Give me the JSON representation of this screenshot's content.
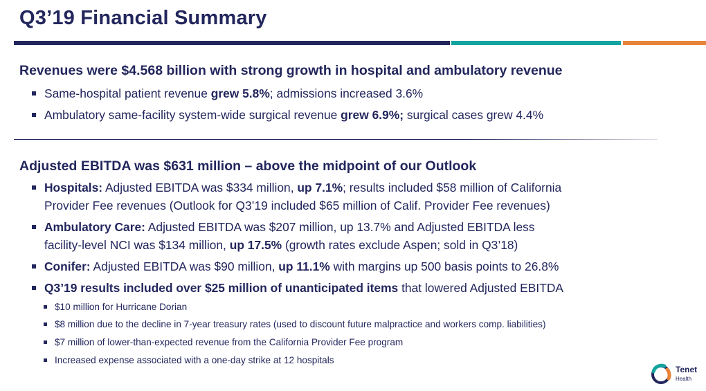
{
  "title": "Q3’19 Financial Summary",
  "accent_colors": {
    "navy": "#22265c",
    "teal": "#14a4a0",
    "orange": "#e8843a"
  },
  "section1": {
    "heading": "Revenues were $4.568 billion with strong growth in hospital and ambulatory revenue",
    "bullets": [
      {
        "pre": "Same-hospital patient revenue ",
        "bold": "grew 5.8%",
        "post": "; admissions increased 3.6%"
      },
      {
        "pre": "Ambulatory same-facility system-wide surgical revenue ",
        "bold": "grew 6.9%;",
        "post": " surgical cases grew 4.4%"
      }
    ]
  },
  "section2": {
    "heading": "Adjusted EBITDA was $631 million – above the midpoint of our Outlook",
    "hospitals": {
      "bold1": "Hospitals:",
      "text1": " Adjusted EBITDA was $334 million, ",
      "bold2": "up 7.1%",
      "text2": "; results included $58 million of California",
      "line2": "Provider Fee revenues (Outlook for Q3’19 included $65 million of Calif. Provider Fee revenues)"
    },
    "ambulatory": {
      "bold1": "Ambulatory Care:",
      "text1": " Adjusted EBITDA was $207 million, up 13.7% and Adjusted EBITDA less",
      "line2a": "facility-level NCI was $134 million, ",
      "bold2": "up 17.5%",
      "line2b": " (growth rates exclude Aspen; sold in Q3’18)"
    },
    "conifer": {
      "bold1": "Conifer:",
      "text1": " Adjusted EBITDA was $90 million, ",
      "bold2": "up 11.1%",
      "text2": " with margins up 500 basis points to 26.8%"
    },
    "items": {
      "bold": "Q3’19 results included over $25 million of unanticipated items",
      "text": " that lowered Adjusted EBITDA"
    },
    "sub_bullets": [
      "$10 million for Hurricane Dorian",
      "$8 million due to the decline in 7-year treasury rates (used to discount future malpractice and workers comp. liabilities)",
      "$7 million of lower-than-expected revenue from the California Provider Fee program",
      "Increased expense associated with a one-day strike at 12 hospitals"
    ]
  },
  "logo": {
    "name": "Tenet",
    "sub": "Health"
  }
}
